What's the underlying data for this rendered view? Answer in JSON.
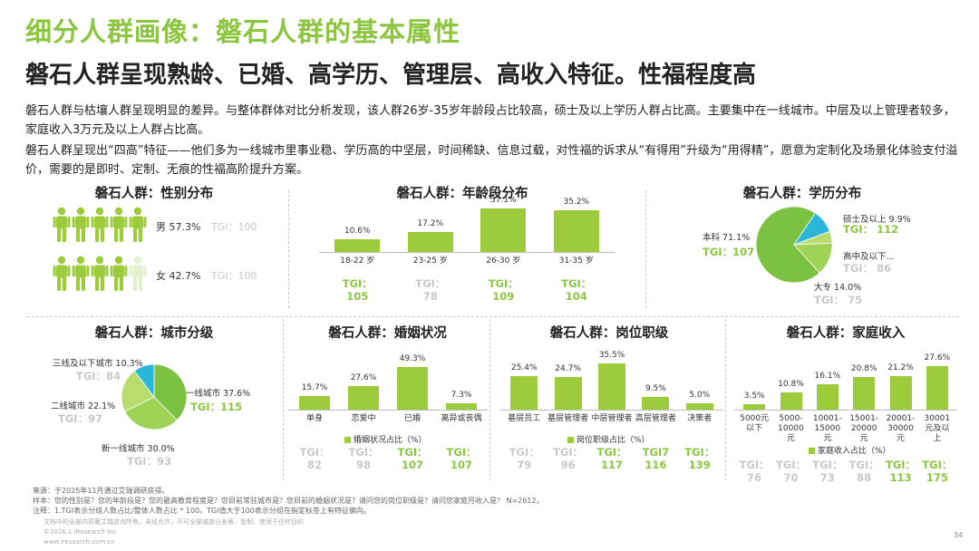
{
  "header": {
    "title": "细分人群画像：磐石人群的基本属性",
    "subtitle": "磐石人群呈现熟龄、已婚、高学历、管理层、高收入特征。性福程度高",
    "para1": "磐石人群与枯壤人群呈现明显的差异。与整体群体对比分析发现，该人群26岁-35岁年龄段占比较高，硕士及以上学历人群占比高。主要集中在一线城市。中层及以上管理者较多，家庭收入3万元及以上人群占比高。",
    "para2": "磐石人群呈现出“四高”特征——他们多为一线城市里事业稳、学历高的中坚层，时间稀缺、信息过载，对性福的诉求从“有得用”升级为“用得精”，愿意为定制化及场景化体验支付溢价，需要的是即时、定制、无痕的性福高阶提升方案。"
  },
  "colors": {
    "brand_green": "#8cc63f",
    "bar_green": "#9ccc3c",
    "tgi_gray": "#c8c8c8",
    "pie_green": "#7cc242",
    "pie_cyan": "#29b6d8",
    "pie_light": "#b8dd6e"
  },
  "chart_data": [
    {
      "id": "gender",
      "type": "table",
      "title": "磐石人群：性别分布",
      "categories": [
        "男",
        "女"
      ],
      "values": [
        57.3,
        42.7
      ],
      "value_labels": [
        "57.3%",
        "42.7%"
      ],
      "tgi": [
        "TGI：100",
        "TGI：100"
      ],
      "icons_per_row": 5,
      "filled_icons": [
        5,
        4
      ]
    },
    {
      "id": "age",
      "type": "bar",
      "title": "磐石人群：年龄段分布",
      "categories": [
        "18-22 岁",
        "23-25 岁",
        "26-30 岁",
        "31-35 岁"
      ],
      "values": [
        10.6,
        17.2,
        37.1,
        35.2
      ],
      "value_labels": [
        "10.6%",
        "17.2%",
        "37.1%",
        "35.2%"
      ],
      "tgi": [
        "TGI：\n105",
        "TGI：\n78",
        "TGI：\n109",
        "TGI：\n104"
      ],
      "tgi_highlight": [
        true,
        false,
        true,
        true
      ],
      "ylim": [
        0,
        40
      ]
    },
    {
      "id": "education",
      "type": "pie",
      "title": "磐石人群：学历分布",
      "categories": [
        "本科",
        "硕士及以上",
        "高中及以下...",
        "大专"
      ],
      "values": [
        71.1,
        9.9,
        5.0,
        14.0
      ],
      "value_labels": [
        "本科 71.1%",
        "硕士及以上 9.9%",
        "高中及以下...",
        "大专 14.0%"
      ],
      "tgi": [
        "TGI：107",
        "TGI：\n112",
        "TGI：\n86",
        "TGI：\n75"
      ],
      "tgi_highlight": [
        true,
        true,
        false,
        false
      ]
    },
    {
      "id": "city",
      "type": "pie",
      "title": "磐石人群：城市分级",
      "categories": [
        "一线城市",
        "新一线城市",
        "二线城市",
        "三线及以下城市"
      ],
      "values": [
        37.6,
        30.0,
        22.1,
        10.3
      ],
      "value_labels": [
        "一线城市 37.6%",
        "新一线城市 30.0%",
        "二线城市 22.1%",
        "三线及以下城市 10.3%"
      ],
      "tgi": [
        "TGI：115",
        "TGI：93",
        "TGI：97",
        "TGI：84"
      ],
      "tgi_highlight": [
        true,
        false,
        false,
        false
      ]
    },
    {
      "id": "marriage",
      "type": "bar",
      "title": "磐石人群：婚姻状况",
      "categories": [
        "单身",
        "恋爱中",
        "已婚",
        "离异或丧偶"
      ],
      "values": [
        15.7,
        27.6,
        49.3,
        7.3
      ],
      "value_labels": [
        "15.7%",
        "27.6%",
        "49.3%",
        "7.3%"
      ],
      "legend": "婚姻状况占比（%）",
      "tgi": [
        "TGI：\n82",
        "TGI：\n98",
        "TGI：\n107",
        "TGI：\n107"
      ],
      "tgi_highlight": [
        false,
        false,
        true,
        true
      ],
      "ylim": [
        0,
        55
      ]
    },
    {
      "id": "position",
      "type": "bar",
      "title": "磐石人群：岗位职级",
      "categories": [
        "基层员工",
        "基层管理者",
        "中层管理者",
        "高层管理者",
        "决策者"
      ],
      "values": [
        25.4,
        24.7,
        35.5,
        9.5,
        5.0
      ],
      "value_labels": [
        "25.4%",
        "24.7%",
        "35.5%",
        "9.5%",
        "5.0%"
      ],
      "legend": "岗位职级占比（%）",
      "tgi": [
        "TGI：\n79",
        "TGI：\n96",
        "TGI：\n117",
        "TGI7\n116",
        "TGI：\n139"
      ],
      "tgi_highlight": [
        false,
        false,
        true,
        true,
        true
      ],
      "ylim": [
        0,
        40
      ]
    },
    {
      "id": "income",
      "type": "bar",
      "title": "磐石人群：家庭收入",
      "categories": [
        "5000元\n以下",
        "5000-\n10000\n元",
        "10001-\n15000\n元",
        "15001-\n20000\n元",
        "20001-\n30000\n元",
        "30001\n元及以\n上"
      ],
      "values": [
        3.5,
        10.8,
        16.1,
        20.8,
        21.2,
        27.6
      ],
      "value_labels": [
        "3.5%",
        "10.8%",
        "16.1%",
        "20.8%",
        "21.2%",
        "27.6%"
      ],
      "legend": "家庭收入占比（%）",
      "tgi": [
        "TGI：\n76",
        "TGI：\n70",
        "TGI：\n73",
        "TGI：\n88",
        "TGI：\n113",
        "TGI：\n175"
      ],
      "tgi_highlight": [
        false,
        false,
        false,
        false,
        true,
        true
      ],
      "ylim": [
        0,
        30
      ]
    }
  ],
  "footer": {
    "source": "来源：于2025年11月通过艾瑞调研获得。",
    "sample": "样本：您的性别是？您的年龄段是？您的最高教育程度是？您目前常驻城市是？您目前的婚姻状况是？请问您的岗位职级是？请问您家庭月收入是？ N=2612。",
    "note": "注释：1.TGI表示分组人数占比/整体人数占比 * 100。TGI值大于100表示分组在指定标签上有特征偏向。",
    "disclaimer": "文档中的全部内容著艾瑞咨询所有，未经允许，不可全部或部分发表、复制、使用于任何目的",
    "copyright": "©2026.1 iResearch Inc",
    "website": "www.iresearch.com.cn",
    "page": "34"
  }
}
